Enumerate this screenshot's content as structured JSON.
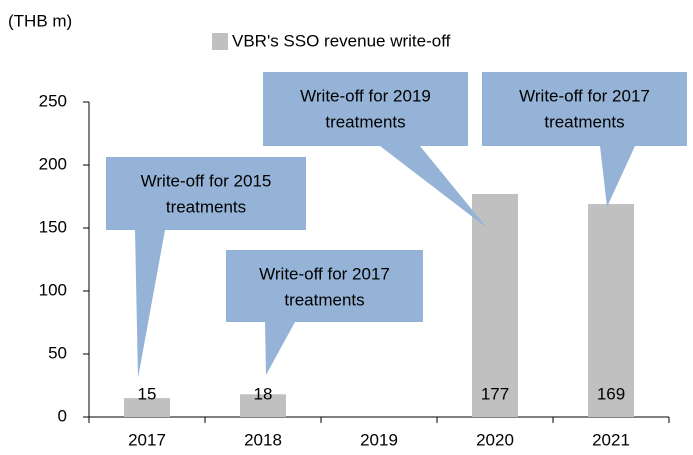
{
  "chart_data": {
    "type": "bar",
    "y_axis_label": "(THB m)",
    "categories": [
      "2017",
      "2018",
      "2019",
      "2020",
      "2021"
    ],
    "series": [
      {
        "name": "VBR's SSO revenue write-off",
        "color": "#c0c0c0",
        "values": [
          15,
          18,
          null,
          177,
          169
        ]
      }
    ],
    "ylim": [
      0,
      250
    ],
    "yticks": [
      0,
      50,
      100,
      150,
      200,
      250
    ],
    "grid": false,
    "legend": "top",
    "annotations": [
      {
        "lines": [
          "Write-off for 2015",
          "treatments"
        ],
        "color": "#95b3d7"
      },
      {
        "lines": [
          "Write-off for 2017",
          "treatments"
        ],
        "color": "#95b3d7"
      },
      {
        "lines": [
          "Write-off for 2019",
          "treatments"
        ],
        "color": "#95b3d7"
      },
      {
        "lines": [
          "Write-off for 2017",
          "treatments"
        ],
        "color": "#95b3d7"
      }
    ]
  }
}
